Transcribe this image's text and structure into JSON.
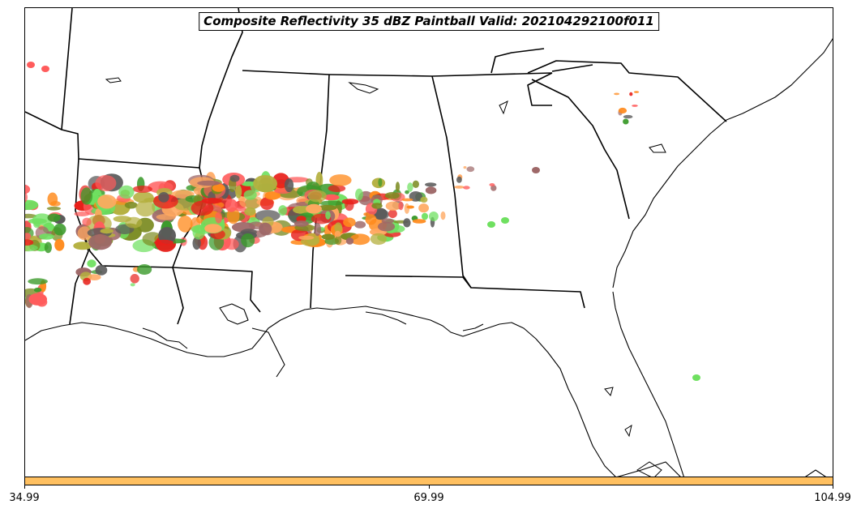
{
  "map": {
    "title": "Composite Reflectivity 35 dBZ Paintball Valid: 202104292100f011",
    "region": "Southeastern United States",
    "basemap_colors": {
      "background": "#ffffff",
      "boundaries": "#000000"
    },
    "paintball_colors": [
      "#e8201a",
      "#ff8a1c",
      "#b5b040",
      "#9e6868",
      "#3a9a2a",
      "#6fe060",
      "#ff5c5c",
      "#ffa860",
      "#5a5a5a",
      "#7a8a20"
    ]
  },
  "colorbar": {
    "fill_color": "#ffc060",
    "ticks": [
      "34.99",
      "69.99",
      "104.99"
    ]
  }
}
